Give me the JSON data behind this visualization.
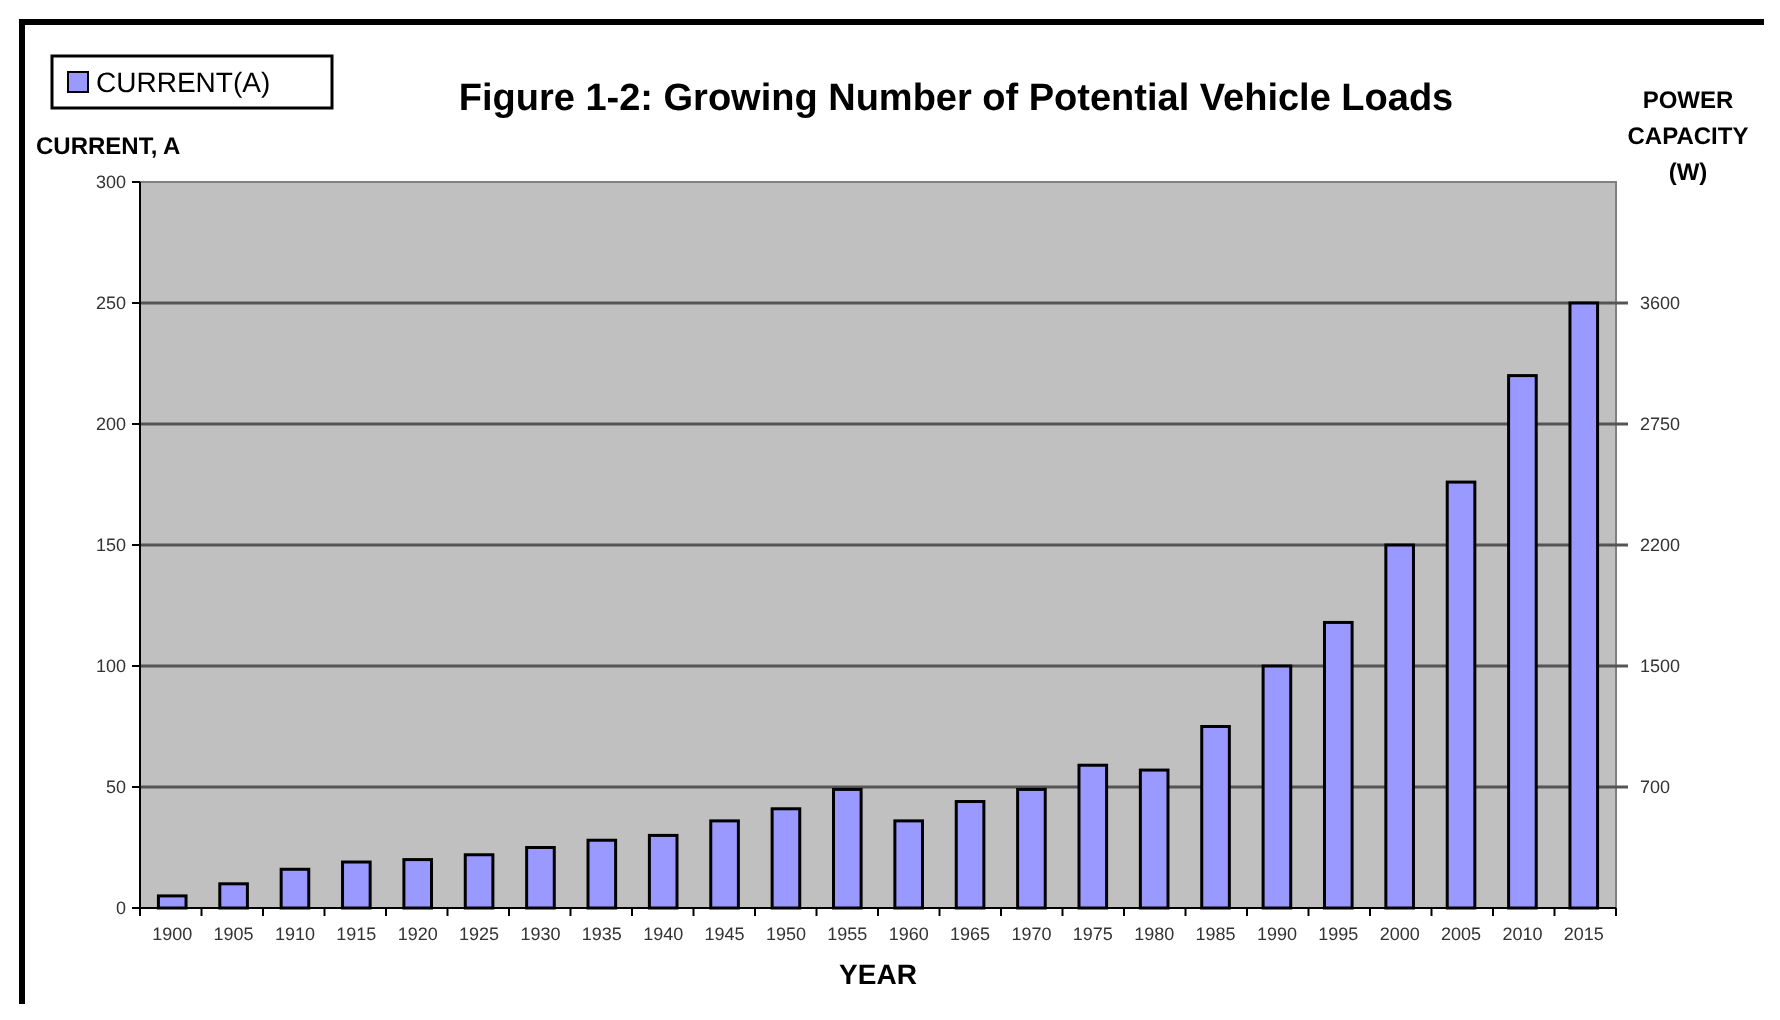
{
  "chart_data": {
    "type": "bar",
    "title": "Figure 1-2: Growing Number of Potential Vehicle Loads",
    "xlabel": "YEAR",
    "ylabel": "CURRENT, A",
    "y2label": "POWER CAPACITY (W)",
    "categories": [
      "1900",
      "1905",
      "1910",
      "1915",
      "1920",
      "1925",
      "1930",
      "1935",
      "1940",
      "1945",
      "1950",
      "1955",
      "1960",
      "1965",
      "1970",
      "1975",
      "1980",
      "1985",
      "1990",
      "1995",
      "2000",
      "2005",
      "2010",
      "2015"
    ],
    "series": [
      {
        "name": "CURRENT(A)",
        "color": "#9999ff",
        "values": [
          5,
          10,
          16,
          19,
          20,
          22,
          25,
          28,
          30,
          36,
          41,
          49,
          36,
          44,
          49,
          59,
          57,
          75,
          100,
          118,
          150,
          176,
          220,
          250
        ]
      }
    ],
    "ylim": [
      0,
      300
    ],
    "yticks": [
      0,
      50,
      100,
      150,
      200,
      250,
      300
    ],
    "annotations": [
      "700",
      "1500",
      "2200",
      "2750",
      "3600"
    ],
    "grid": "y",
    "legend": "top left"
  }
}
